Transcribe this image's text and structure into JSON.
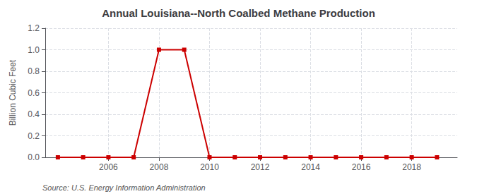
{
  "chart_data": {
    "type": "line",
    "title": "Annual Louisiana--North Coalbed Methane Production",
    "ylabel": "Billion Cubic Feet",
    "annotations": [
      "Source: U.S. Energy Information Administration"
    ],
    "x": [
      2004,
      2005,
      2006,
      2007,
      2008,
      2009,
      2010,
      2011,
      2012,
      2013,
      2014,
      2015,
      2016,
      2017,
      2018,
      2019
    ],
    "values": [
      0.0,
      0.0,
      0.0,
      0.0,
      1.0,
      1.0,
      0.0,
      0.0,
      0.0,
      0.0,
      0.0,
      0.0,
      0.0,
      0.0,
      0.0,
      0.0
    ],
    "color": "#cc0000",
    "marker": "square",
    "xlim": [
      2003.5,
      2019.8
    ],
    "xticks": [
      2006,
      2008,
      2010,
      2012,
      2014,
      2016,
      2018
    ],
    "ylim": [
      0.0,
      1.2
    ],
    "yticks": [
      {
        "value": 0.0,
        "label": "0.0"
      },
      0.2,
      0.4,
      0.6,
      0.8,
      {
        "value": 1.0,
        "label": "1.0"
      },
      1.2
    ],
    "grid": true
  }
}
